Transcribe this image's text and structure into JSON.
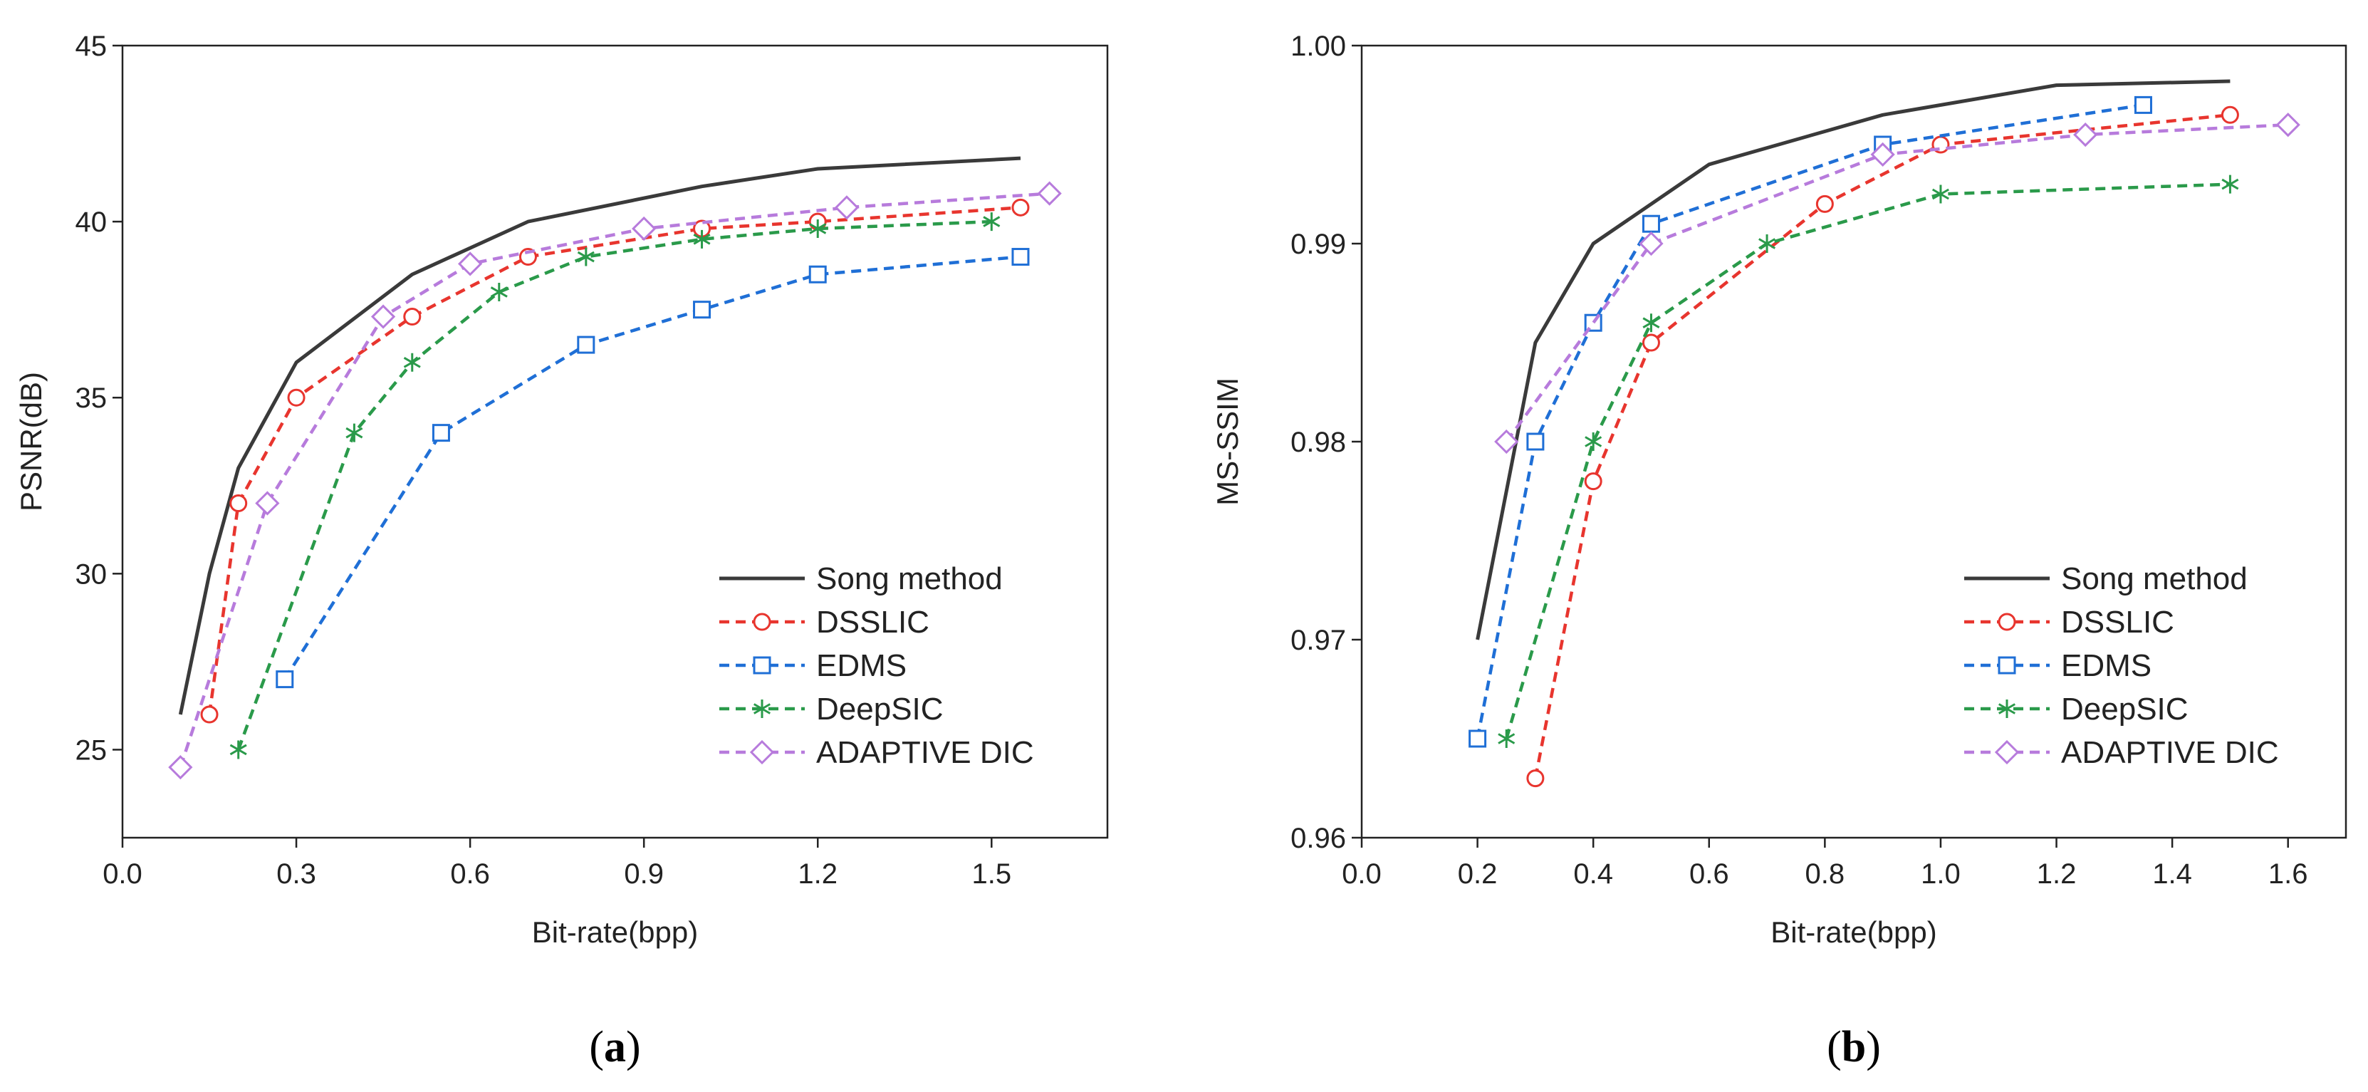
{
  "colors": {
    "Song method": "#3a3a3a",
    "DSSLIC": "#e8352e",
    "EDMS": "#1f6fd6",
    "DeepSIC": "#2a9a4a",
    "ADAPTIVE DIC": "#b77bdc"
  },
  "chart_data": [
    {
      "type": "line",
      "panel_label": {
        "open": "(",
        "letter": "a",
        "close": ")"
      },
      "xlabel": "Bit-rate(bpp)",
      "ylabel": "PSNR(dB)",
      "xlim": [
        0.0,
        1.7
      ],
      "ylim": [
        22.5,
        45
      ],
      "xticks": [
        0.0,
        0.3,
        0.6,
        0.9,
        1.2,
        1.5
      ],
      "xtick_labels": [
        "0.0",
        "0.3",
        "0.6",
        "0.9",
        "1.2",
        "1.5"
      ],
      "yticks": [
        25,
        30,
        35,
        40,
        45
      ],
      "ytick_labels": [
        "25",
        "30",
        "35",
        "40",
        "45"
      ],
      "legend_position": "bottom-right",
      "series": [
        {
          "name": "Song method",
          "style": "solid",
          "marker": "none",
          "x": [
            0.1,
            0.15,
            0.2,
            0.3,
            0.5,
            0.7,
            1.0,
            1.2,
            1.55
          ],
          "y": [
            26,
            30,
            33,
            36,
            38.5,
            40,
            41,
            41.5,
            41.8
          ]
        },
        {
          "name": "DSSLIC",
          "style": "dashed",
          "marker": "circle",
          "x": [
            0.15,
            0.2,
            0.3,
            0.5,
            0.7,
            1.0,
            1.2,
            1.55
          ],
          "y": [
            26,
            32,
            35,
            37.3,
            39,
            39.8,
            40,
            40.4
          ]
        },
        {
          "name": "EDMS",
          "style": "dashed",
          "marker": "square",
          "x": [
            0.28,
            0.55,
            0.8,
            1.0,
            1.2,
            1.55
          ],
          "y": [
            27,
            34,
            36.5,
            37.5,
            38.5,
            39
          ]
        },
        {
          "name": "DeepSIC",
          "style": "dashed",
          "marker": "star",
          "x": [
            0.2,
            0.4,
            0.5,
            0.65,
            0.8,
            1.0,
            1.2,
            1.5
          ],
          "y": [
            25,
            34,
            36,
            38,
            39,
            39.5,
            39.8,
            40
          ]
        },
        {
          "name": "ADAPTIVE DIC",
          "style": "dashed",
          "marker": "diamond",
          "x": [
            0.1,
            0.25,
            0.45,
            0.6,
            0.9,
            1.25,
            1.6
          ],
          "y": [
            24.5,
            32,
            37.3,
            38.8,
            39.8,
            40.4,
            40.8
          ]
        }
      ]
    },
    {
      "type": "line",
      "panel_label": {
        "open": "(",
        "letter": "b",
        "close": ")"
      },
      "xlabel": "Bit-rate(bpp)",
      "ylabel": "MS-SSIM",
      "xlim": [
        0.0,
        1.7
      ],
      "ylim": [
        0.96,
        1.0
      ],
      "xticks": [
        0.0,
        0.2,
        0.4,
        0.6,
        0.8,
        1.0,
        1.2,
        1.4,
        1.6
      ],
      "xtick_labels": [
        "0.0",
        "0.2",
        "0.4",
        "0.6",
        "0.8",
        "1.0",
        "1.2",
        "1.4",
        "1.6"
      ],
      "yticks": [
        0.96,
        0.97,
        0.98,
        0.99,
        1.0
      ],
      "ytick_labels": [
        "0.96",
        "0.97",
        "0.98",
        "0.99",
        "1.00"
      ],
      "legend_position": "bottom-right",
      "series": [
        {
          "name": "Song method",
          "style": "solid",
          "marker": "none",
          "x": [
            0.2,
            0.3,
            0.4,
            0.5,
            0.6,
            0.9,
            1.2,
            1.5
          ],
          "y": [
            0.97,
            0.985,
            0.99,
            0.992,
            0.994,
            0.9965,
            0.998,
            0.9982
          ]
        },
        {
          "name": "DSSLIC",
          "style": "dashed",
          "marker": "circle",
          "x": [
            0.3,
            0.4,
            0.5,
            0.8,
            1.0,
            1.5
          ],
          "y": [
            0.963,
            0.978,
            0.985,
            0.992,
            0.995,
            0.9965
          ]
        },
        {
          "name": "EDMS",
          "style": "dashed",
          "marker": "square",
          "x": [
            0.2,
            0.3,
            0.4,
            0.5,
            0.9,
            1.35
          ],
          "y": [
            0.965,
            0.98,
            0.986,
            0.991,
            0.995,
            0.997
          ]
        },
        {
          "name": "DeepSIC",
          "style": "dashed",
          "marker": "star",
          "x": [
            0.25,
            0.4,
            0.5,
            0.7,
            1.0,
            1.5
          ],
          "y": [
            0.965,
            0.98,
            0.986,
            0.99,
            0.9925,
            0.993
          ]
        },
        {
          "name": "ADAPTIVE DIC",
          "style": "dashed",
          "marker": "diamond",
          "x": [
            0.25,
            0.5,
            0.9,
            1.25,
            1.6
          ],
          "y": [
            0.98,
            0.99,
            0.9945,
            0.9955,
            0.996
          ]
        }
      ]
    }
  ]
}
